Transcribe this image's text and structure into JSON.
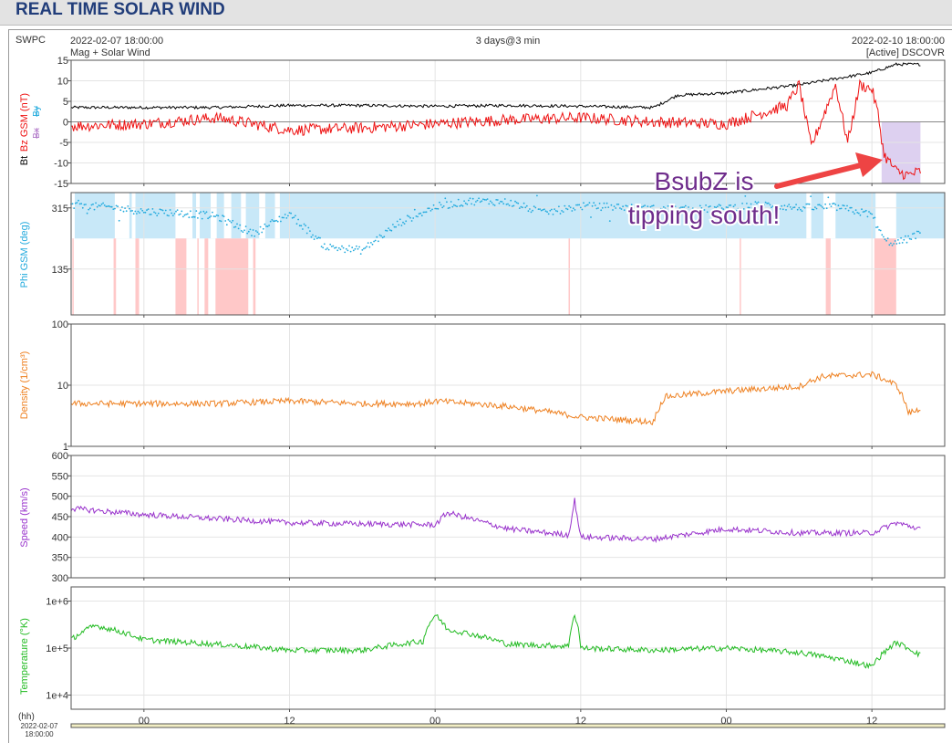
{
  "page": {
    "title": "REAL TIME SOLAR WIND"
  },
  "header": {
    "source": "SWPC",
    "start": "2022-02-07 18:00:00",
    "subtitle": "Mag + Solar Wind",
    "span": "3 days@3 min",
    "end": "2022-02-10 18:00:00",
    "status": "[Active] DSCOVR"
  },
  "annotation": {
    "line1": "BsubZ is",
    "line2": "tipping south!",
    "arrow_color": "#ee4444",
    "text_color": "#6f2d8c"
  },
  "xaxis": {
    "unit_label": "(hh)",
    "date_label_1": "2022-02-07",
    "date_label_2": "18:00:00",
    "ticks": [
      {
        "hours": 6,
        "label": "00"
      },
      {
        "hours": 18,
        "label": "12"
      },
      {
        "hours": 30,
        "label": "00"
      },
      {
        "hours": 42,
        "label": "12"
      },
      {
        "hours": 54,
        "label": "00"
      },
      {
        "hours": 66,
        "label": "12"
      }
    ]
  },
  "colors": {
    "bt": "#000000",
    "bz": "#ee1111",
    "phi": "#22aadd",
    "phi_away": "#c8e8f8",
    "phi_toward": "#ffc8c8",
    "density": "#ee8020",
    "speed": "#9933cc",
    "temperature": "#22bb22",
    "bz_south_shade": "#ddd0f0"
  },
  "chart_data": [
    {
      "type": "line",
      "title": "Bz GSM / Bt",
      "ylabel": "Bz GSM (nT)",
      "legend": [
        "Bt",
        "Bx",
        "By"
      ],
      "ylim": [
        -15,
        15
      ],
      "yticks": [
        15,
        10,
        5,
        0,
        -5,
        -10,
        -15
      ],
      "x_unit": "hours since 2022-02-07 18:00",
      "series": [
        {
          "name": "Bt",
          "x": [
            0,
            6,
            12,
            18,
            24,
            30,
            36,
            42,
            48,
            50,
            54,
            60,
            62,
            66,
            68,
            70
          ],
          "values": [
            3.5,
            3.5,
            3.5,
            4,
            4,
            3.8,
            4,
            3.8,
            3.5,
            6.5,
            7,
            9,
            10,
            12,
            14,
            14
          ]
        },
        {
          "name": "Bz GSM",
          "x": [
            0,
            6,
            12,
            18,
            24,
            30,
            36,
            42,
            48,
            54,
            59,
            60,
            61,
            63,
            64,
            65,
            66,
            66.5,
            67,
            68,
            69,
            70
          ],
          "values": [
            -1,
            -0.5,
            1,
            -2,
            -1.5,
            -0.5,
            0.5,
            1,
            0,
            -0.5,
            4,
            9,
            -6,
            9,
            -5,
            9,
            8,
            2,
            -8,
            -12,
            -13,
            -12
          ]
        }
      ],
      "shaded_region": {
        "label": "Bz south",
        "x": [
          66.8,
          70
        ],
        "y": [
          -15,
          0
        ]
      }
    },
    {
      "type": "scatter",
      "title": "Phi GSM",
      "ylabel": "Phi GSM (deg)",
      "ylim": [
        0,
        360
      ],
      "yticks": [
        315,
        135
      ],
      "x": [
        0,
        3,
        6,
        9,
        12,
        15,
        18,
        21,
        24,
        27,
        30,
        33,
        36,
        39,
        42,
        45,
        48,
        51,
        54,
        57,
        60,
        63,
        66,
        67,
        68,
        70
      ],
      "values": [
        320,
        318,
        305,
        300,
        290,
        240,
        298,
        200,
        190,
        270,
        318,
        335,
        332,
        300,
        320,
        318,
        312,
        310,
        315,
        325,
        315,
        318,
        295,
        220,
        210,
        240
      ]
    },
    {
      "type": "line",
      "title": "Density",
      "ylabel": "Density (1/cm³)",
      "yscale": "log",
      "ylim": [
        1,
        100
      ],
      "yticks": [
        "100",
        "10",
        "1"
      ],
      "x": [
        0,
        6,
        12,
        18,
        24,
        29,
        30,
        36,
        42,
        48,
        49,
        54,
        60,
        62,
        66,
        68,
        69,
        70
      ],
      "values": [
        5,
        5,
        5,
        5.5,
        5,
        5,
        5.5,
        4.5,
        3,
        2.5,
        6.5,
        8,
        9.5,
        14,
        15,
        10,
        3.5,
        4
      ]
    },
    {
      "type": "line",
      "title": "Speed",
      "ylabel": "Speed (km/s)",
      "ylim": [
        300,
        600
      ],
      "yticks": [
        600,
        550,
        500,
        450,
        400,
        350,
        300
      ],
      "x": [
        0,
        6,
        12,
        18,
        24,
        30,
        31,
        36,
        41,
        41.5,
        42,
        48,
        54,
        60,
        66,
        68,
        70
      ],
      "values": [
        470,
        455,
        445,
        435,
        432,
        430,
        460,
        420,
        405,
        490,
        400,
        395,
        420,
        410,
        410,
        435,
        420
      ]
    },
    {
      "type": "line",
      "title": "Temperature",
      "ylabel": "Temperature (°K)",
      "yscale": "log",
      "ylim": [
        5000,
        2000000
      ],
      "yticks": [
        "1e+6",
        "1e+5",
        "1e+4"
      ],
      "x": [
        0,
        2,
        6,
        12,
        18,
        24,
        29,
        30,
        31,
        36,
        41,
        41.5,
        42,
        48,
        54,
        60,
        66,
        67,
        68,
        70
      ],
      "values": [
        150000,
        300000,
        150000,
        120000,
        90000,
        90000,
        140000,
        500000,
        250000,
        120000,
        110000,
        500000,
        100000,
        90000,
        100000,
        80000,
        40000,
        80000,
        130000,
        70000
      ]
    }
  ]
}
